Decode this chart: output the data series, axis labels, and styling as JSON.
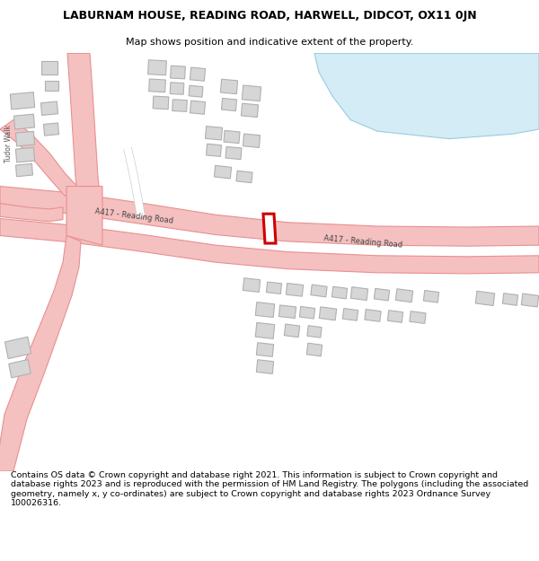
{
  "title": "LABURNAM HOUSE, READING ROAD, HARWELL, DIDCOT, OX11 0JN",
  "subtitle": "Map shows position and indicative extent of the property.",
  "footer": "Contains OS data © Crown copyright and database right 2021. This information is subject to Crown copyright and database rights 2023 and is reproduced with the permission of HM Land Registry. The polygons (including the associated geometry, namely x, y co-ordinates) are subject to Crown copyright and database rights 2023 Ordnance Survey 100026316.",
  "bg_color": "#ffffff",
  "map_bg": "#ffffff",
  "road_color": "#f5c0c0",
  "road_border": "#e89090",
  "building_color": "#d6d6d6",
  "building_border": "#b0b0b0",
  "highlight_color": "#cc0000",
  "road_label_color": "#444444",
  "street_label_color": "#555555",
  "water_color": "#d4ecf5",
  "water_border": "#9acce0"
}
